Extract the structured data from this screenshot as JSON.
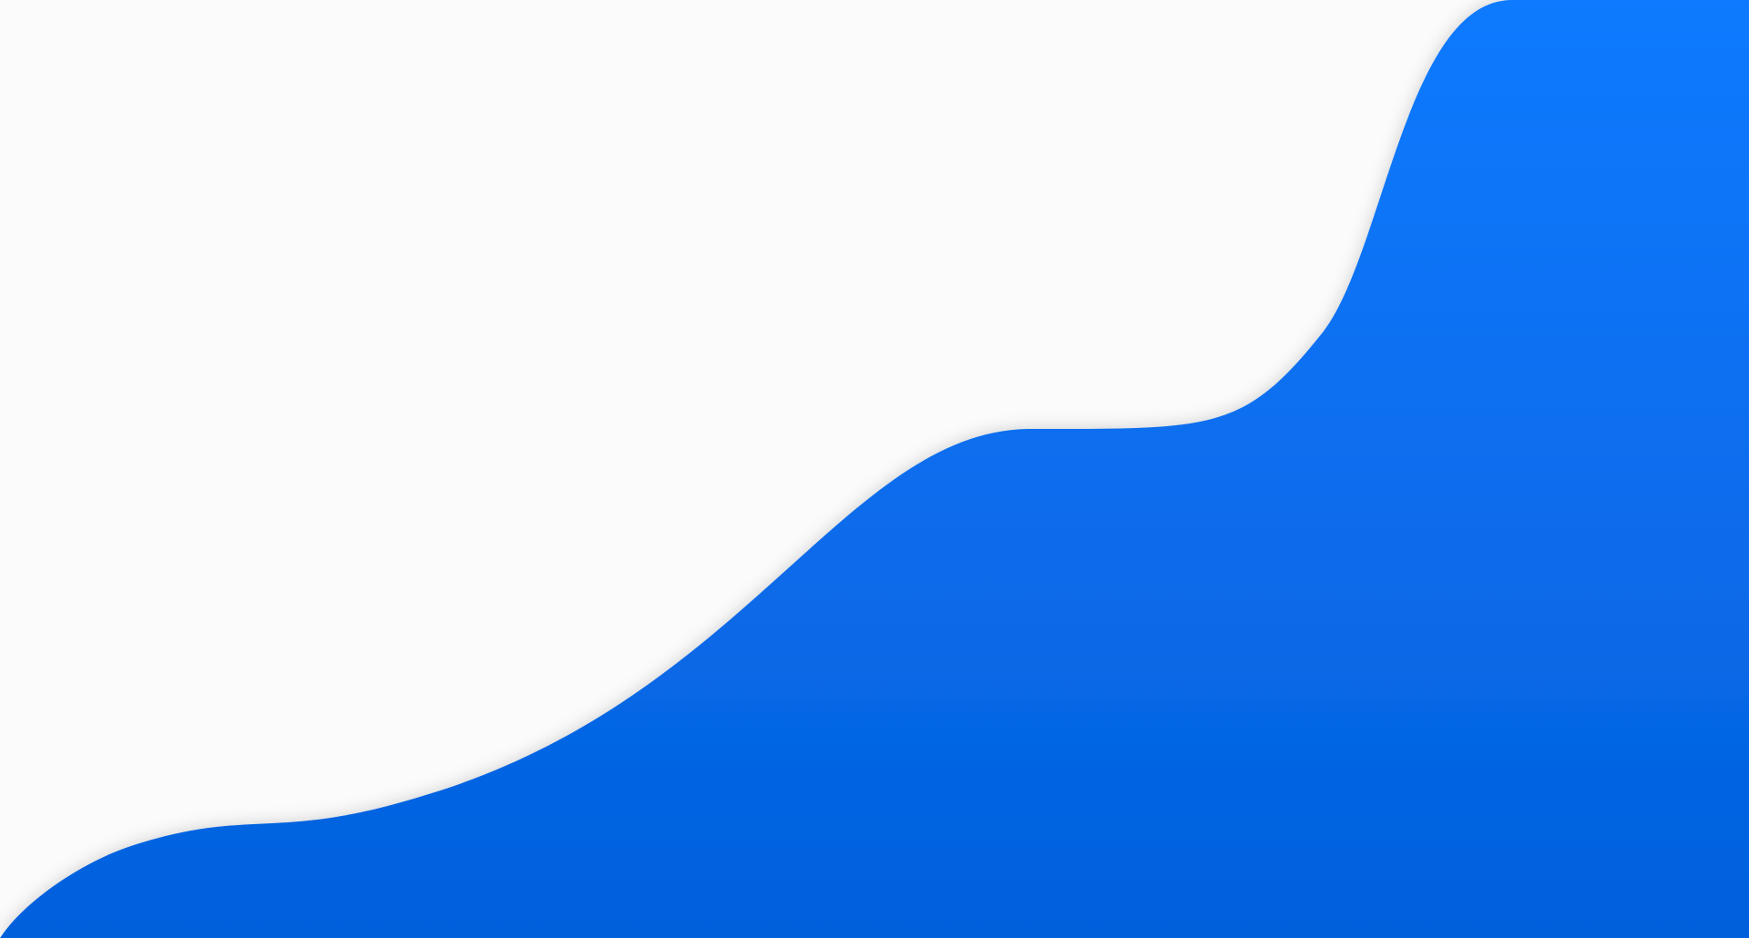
{
  "page": {
    "background_color": "#fbfbfb",
    "shape": "blue-wave-background",
    "colors": {
      "gradient_top": "#117aff",
      "gradient_bottom": "#0360dc",
      "shadow": "#000000"
    }
  }
}
